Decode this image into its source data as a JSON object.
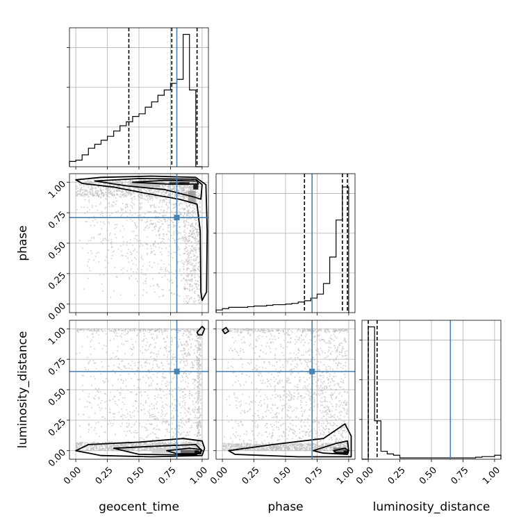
{
  "figure": {
    "type": "corner_plot"
  },
  "parameters": [
    "geocent_time",
    "phase",
    "luminosity_distance"
  ],
  "labels": {
    "geocent_time": "geocent_time",
    "phase": "phase",
    "luminosity_distance": "luminosity_distance"
  },
  "colors": {
    "truth": "#4682b4",
    "hist": "#000000",
    "grid": "#b0b0b0",
    "contour": "#000000",
    "points": "#bdbdbd"
  },
  "chart_data": [
    {
      "type": "histogram",
      "panel": "geocent_time",
      "xlim": [
        -0.05,
        1.05
      ],
      "bin_edges": [
        -0.05,
        0,
        0.05,
        0.1,
        0.15,
        0.2,
        0.25,
        0.3,
        0.35,
        0.4,
        0.45,
        0.5,
        0.55,
        0.6,
        0.65,
        0.7,
        0.75,
        0.8,
        0.85,
        0.9,
        0.95,
        1.0
      ],
      "counts": [
        0.04,
        0.05,
        0.09,
        0.14,
        0.17,
        0.2,
        0.23,
        0.27,
        0.31,
        0.34,
        0.38,
        0.4,
        0.45,
        0.49,
        0.54,
        0.58,
        0.63,
        0.66,
        1.0,
        0.58,
        0.0
      ],
      "quantiles": [
        0.42,
        0.76
      ],
      "quantile_median": 0.96,
      "truth": 0.8,
      "xticks": [
        "0.00",
        "0.25",
        "0.50",
        "0.75",
        "1.00"
      ],
      "grid": true
    },
    {
      "type": "histogram",
      "panel": "phase",
      "xlim": [
        -0.05,
        1.05
      ],
      "bin_edges": [
        -0.05,
        0,
        0.05,
        0.1,
        0.15,
        0.2,
        0.25,
        0.3,
        0.35,
        0.4,
        0.45,
        0.5,
        0.55,
        0.6,
        0.65,
        0.7,
        0.75,
        0.8,
        0.85,
        0.9,
        0.95,
        1.0
      ],
      "counts": [
        0.02,
        0.03,
        0.04,
        0.04,
        0.04,
        0.045,
        0.05,
        0.05,
        0.055,
        0.06,
        0.06,
        0.065,
        0.07,
        0.08,
        0.09,
        0.11,
        0.14,
        0.22,
        0.42,
        0.7,
        0.95
      ],
      "quantiles": [
        0.65,
        0.95
      ],
      "quantile_median": 0.99,
      "truth": 0.71,
      "xticks": [
        "0.00",
        "0.25",
        "0.50",
        "0.75",
        "1.00"
      ],
      "grid": true
    },
    {
      "type": "histogram",
      "panel": "luminosity_distance",
      "xlim": [
        -0.05,
        1.05
      ],
      "bin_edges": [
        -0.05,
        0,
        0.05,
        0.1,
        0.15,
        0.2,
        0.25,
        0.3,
        0.35,
        0.4,
        0.45,
        0.5,
        0.55,
        0.6,
        0.65,
        0.7,
        0.75,
        0.8,
        0.85,
        0.9,
        0.95,
        1.0,
        1.05
      ],
      "counts": [
        0.0,
        1.0,
        0.29,
        0.06,
        0.04,
        0.03,
        0.01,
        0.01,
        0.01,
        0.01,
        0.01,
        0.01,
        0.01,
        0.01,
        0.01,
        0.01,
        0.01,
        0.01,
        0.015,
        0.02,
        0.02,
        0.03
      ],
      "quantiles": [
        0.0,
        0.07
      ],
      "truth": 0.65,
      "xticks": [
        "0.00",
        "0.25",
        "0.50",
        "0.75",
        "1.00"
      ],
      "grid": true
    },
    {
      "type": "scatter_contour",
      "x_param": "geocent_time",
      "y_param": "phase",
      "xlim": [
        -0.05,
        1.05
      ],
      "ylim": [
        -0.07,
        1.07
      ],
      "truth": [
        0.8,
        0.71
      ],
      "xticks": [
        "0.00",
        "0.25",
        "0.50",
        "0.75",
        "1.00"
      ],
      "yticks": [
        "0.00",
        "0.25",
        "0.50",
        "0.75",
        "1.00"
      ],
      "grid": true
    },
    {
      "type": "scatter_contour",
      "x_param": "geocent_time",
      "y_param": "luminosity_distance",
      "xlim": [
        -0.05,
        1.05
      ],
      "ylim": [
        -0.07,
        1.07
      ],
      "truth": [
        0.8,
        0.65
      ],
      "xticks": [
        "0.00",
        "0.25",
        "0.50",
        "0.75",
        "1.00"
      ],
      "yticks": [
        "0.00",
        "0.25",
        "0.50",
        "0.75",
        "1.00"
      ],
      "grid": true
    },
    {
      "type": "scatter_contour",
      "x_param": "phase",
      "y_param": "luminosity_distance",
      "xlim": [
        -0.05,
        1.05
      ],
      "ylim": [
        -0.07,
        1.07
      ],
      "truth": [
        0.71,
        0.65
      ],
      "xticks": [
        "0.00",
        "0.25",
        "0.50",
        "0.75",
        "1.00"
      ],
      "yticks": [
        "0.00",
        "0.25",
        "0.50",
        "0.75",
        "1.00"
      ],
      "grid": true
    }
  ]
}
